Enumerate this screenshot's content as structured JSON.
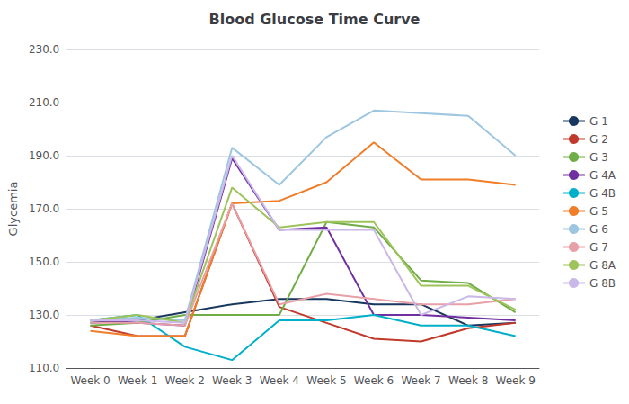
{
  "chart_data": {
    "type": "line",
    "title": "Blood Glucose Time Curve",
    "y_label": "Glycemia",
    "categories": [
      "Week 0",
      "Week 1",
      "Week 2",
      "Week 3",
      "Week 4",
      "Week 5",
      "Week 6",
      "Week 7",
      "Week 8",
      "Week 9"
    ],
    "series": [
      {
        "name": "G 1",
        "color": "#17375e",
        "values": [
          127,
          128,
          131,
          134,
          136,
          136,
          134,
          134,
          126,
          127
        ]
      },
      {
        "name": "G 2",
        "color": "#c0392b",
        "values": [
          126,
          122,
          122,
          172,
          133,
          127,
          121,
          120,
          125,
          127
        ]
      },
      {
        "name": "G 3",
        "color": "#70ad47",
        "values": [
          126,
          127,
          130,
          130,
          130,
          165,
          163,
          143,
          142,
          131
        ]
      },
      {
        "name": "G 4A",
        "color": "#7030a0",
        "values": [
          128,
          127,
          126,
          189,
          162,
          163,
          130,
          130,
          129,
          128
        ]
      },
      {
        "name": "G 4B",
        "color": "#00b0c8",
        "values": [
          128,
          130,
          118,
          113,
          128,
          128,
          130,
          126,
          126,
          122
        ]
      },
      {
        "name": "G 5",
        "color": "#f07d27",
        "values": [
          124,
          122,
          122,
          172,
          173,
          180,
          195,
          181,
          181,
          179
        ]
      },
      {
        "name": "G 6",
        "color": "#9dc6e0",
        "values": [
          128,
          129,
          128,
          193,
          179,
          197,
          207,
          206,
          205,
          190
        ]
      },
      {
        "name": "G 7",
        "color": "#e8a0a8",
        "values": [
          127,
          127,
          126,
          172,
          134,
          138,
          136,
          134,
          134,
          136
        ]
      },
      {
        "name": "G 8A",
        "color": "#9dc35a",
        "values": [
          128,
          130,
          127,
          178,
          163,
          165,
          165,
          141,
          141,
          132
        ]
      },
      {
        "name": "G 8B",
        "color": "#c9b8e8",
        "values": [
          128,
          128,
          127,
          190,
          162,
          162,
          162,
          130,
          137,
          136
        ]
      }
    ],
    "ylim": [
      110.0,
      230.0
    ],
    "yticks": [
      {
        "value": 110,
        "label": "110.0"
      },
      {
        "value": 130,
        "label": "130.0"
      },
      {
        "value": 150,
        "label": "150.0"
      },
      {
        "value": 170,
        "label": "170.0"
      },
      {
        "value": 190,
        "label": "190.0"
      },
      {
        "value": 210,
        "label": "210.0"
      },
      {
        "value": 230,
        "label": "230.0"
      }
    ],
    "grid": true,
    "legend": "right"
  }
}
